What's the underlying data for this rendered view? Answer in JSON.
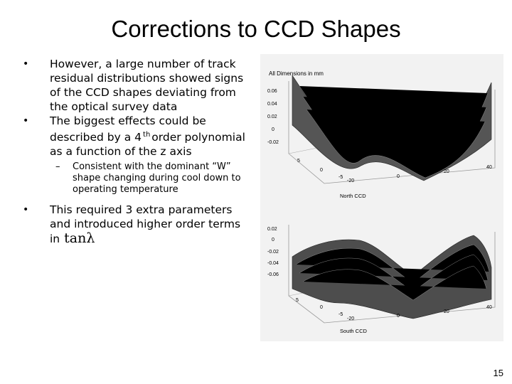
{
  "slide": {
    "title": "Corrections to CCD Shapes",
    "page_number": "15"
  },
  "bullets": [
    {
      "text": "However, a large number of track residual distributions showed signs of the CCD shapes deviating from the optical survey data"
    },
    {
      "text_before": "The biggest effects could be described by a 4",
      "superscript": "th",
      "text_after": "order polynomial as a function of the z axis",
      "sub": "Consistent with the dominant “W” shape changing during cool down to operating temperature"
    },
    {
      "text": "This required 3 extra parameters and introduced higher order terms in",
      "math": "tanλ"
    }
  ],
  "figure": {
    "header": "All Dimensions in mm",
    "top_plot": {
      "caption": "North CCD",
      "z_ticks": [
        "0.06",
        "0.04",
        "0.02",
        "0",
        "-0.02"
      ],
      "x_ticks": [
        "-20",
        "0",
        "20",
        "40"
      ],
      "y_ticks": [
        "5",
        "0",
        "-5"
      ]
    },
    "bottom_plot": {
      "caption": "South CCD",
      "z_ticks": [
        "0.02",
        "0",
        "-0.02",
        "-0.04",
        "-0.06"
      ],
      "x_ticks": [
        "-20",
        "0",
        "20",
        "40"
      ],
      "y_ticks": [
        "5",
        "0",
        "-5"
      ]
    }
  }
}
